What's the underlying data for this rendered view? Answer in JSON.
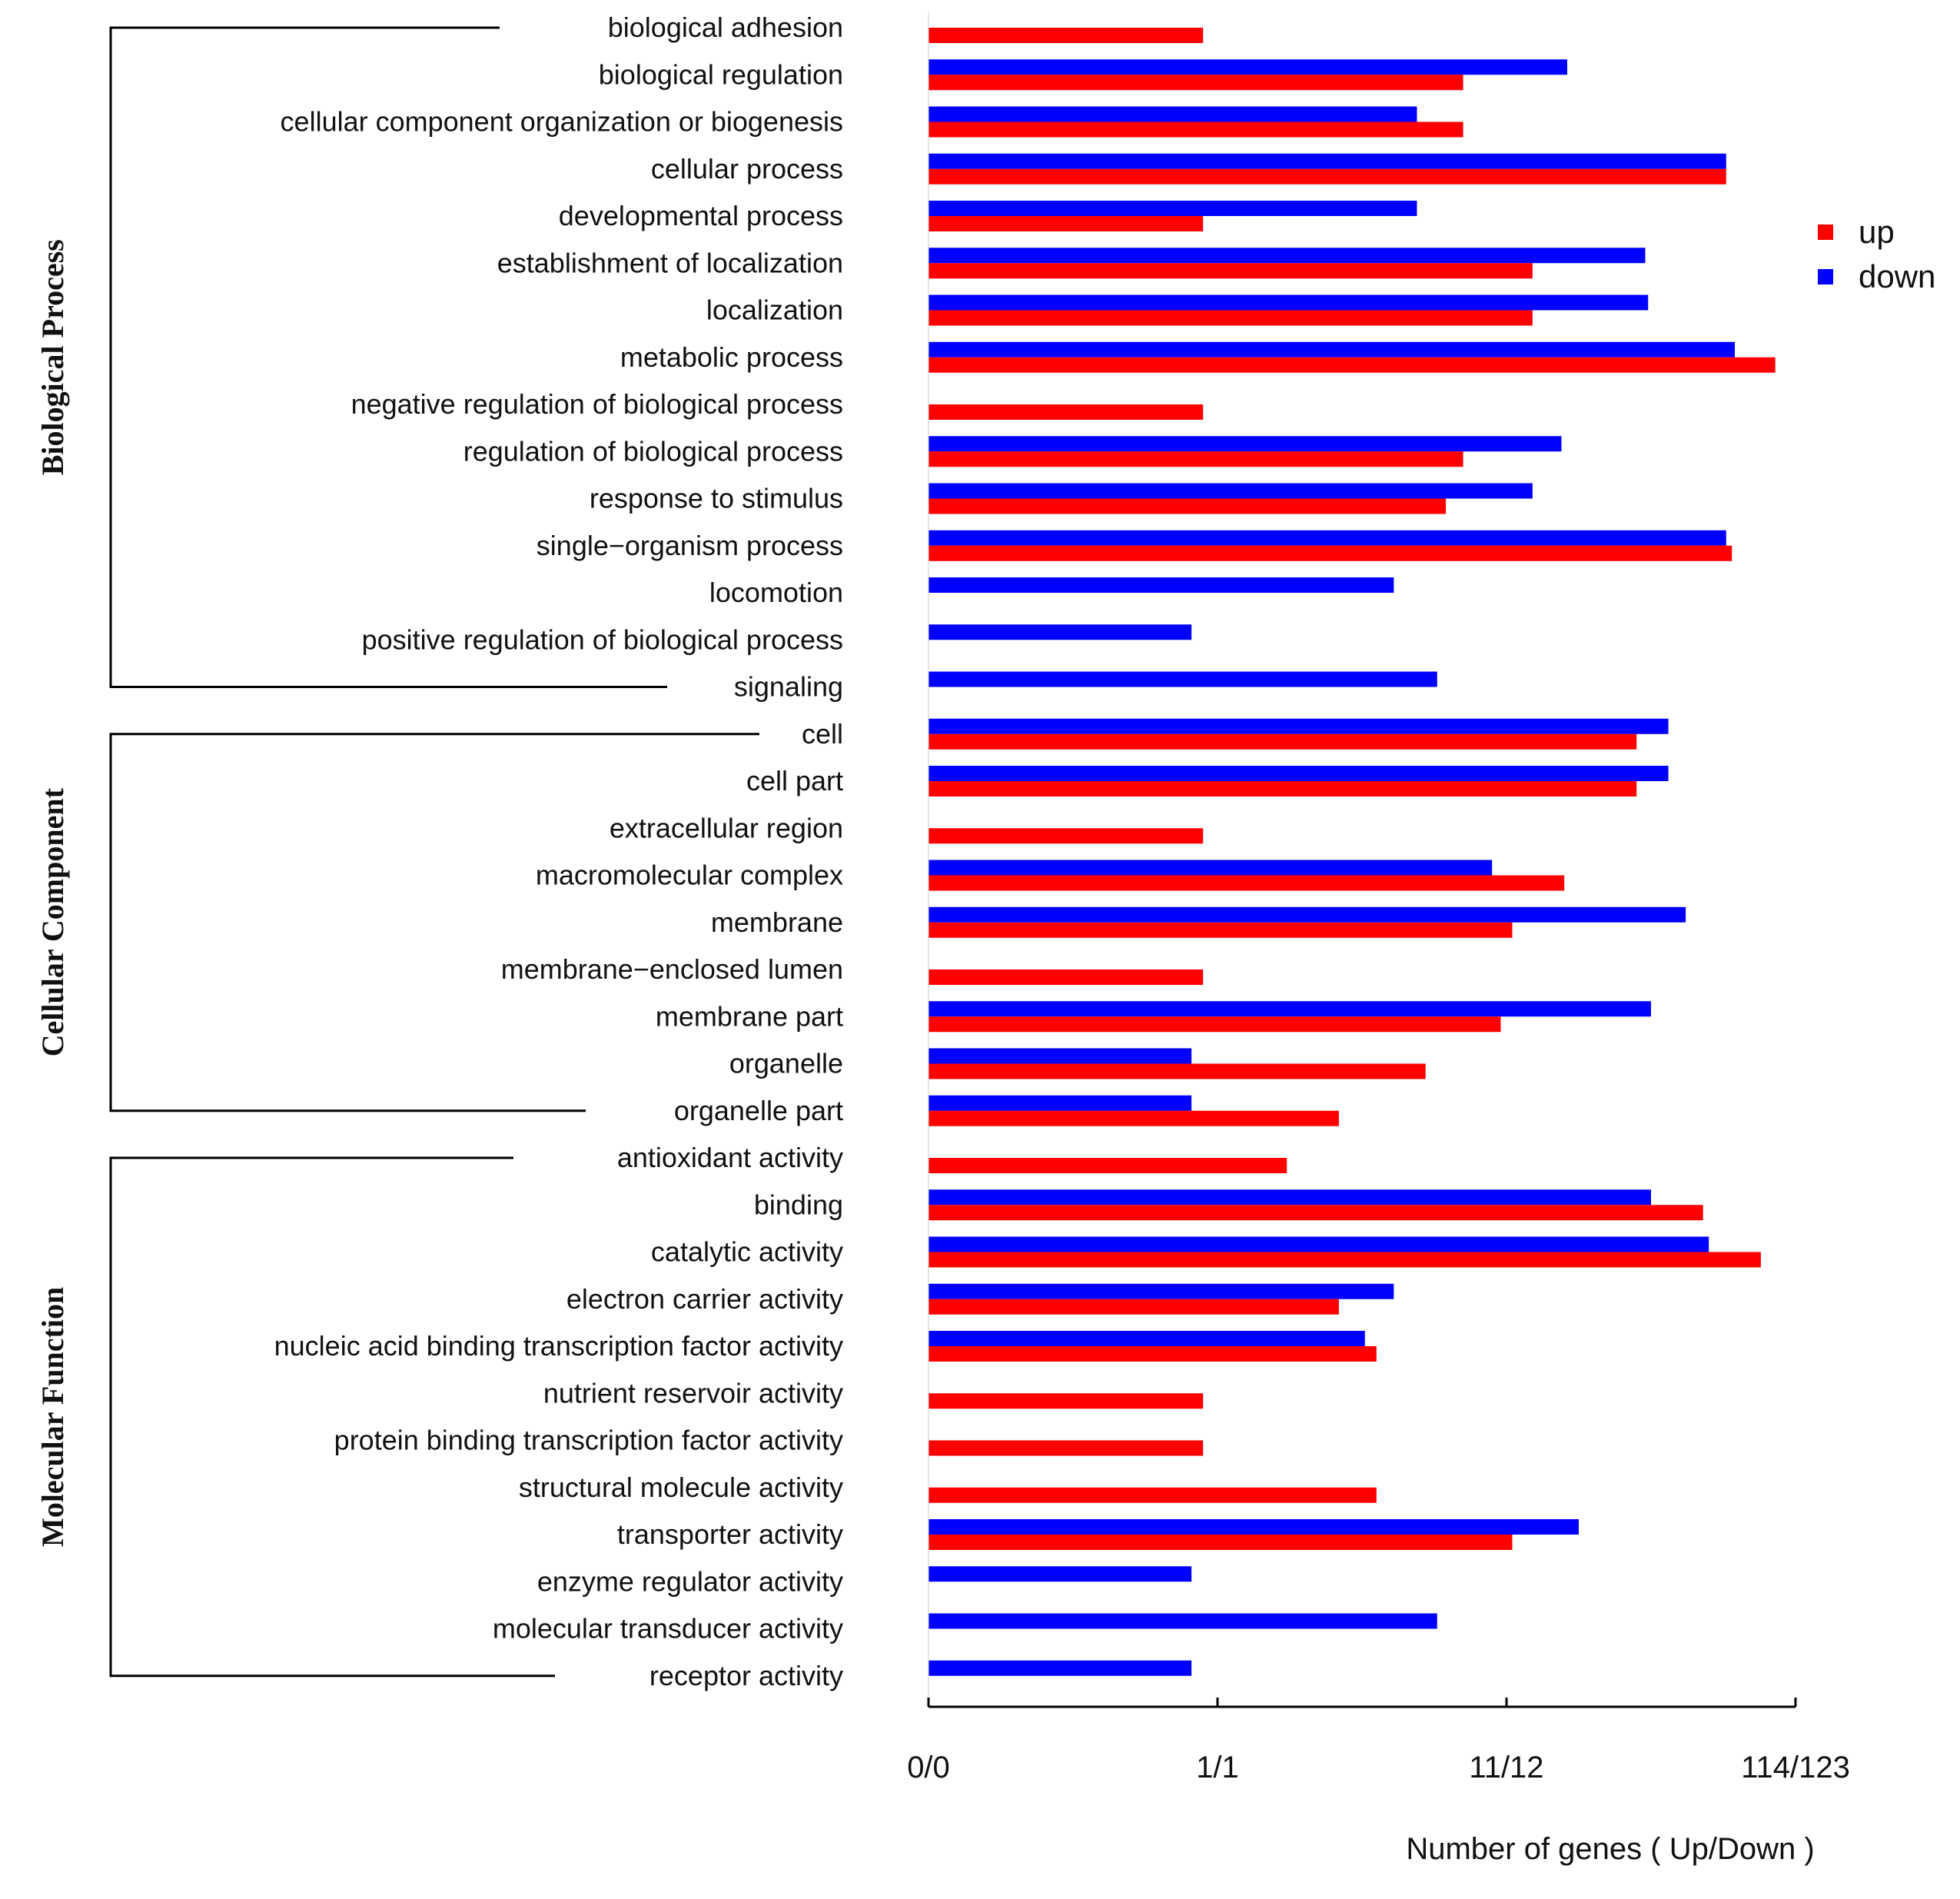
{
  "chart_data": {
    "type": "bar",
    "orientation": "horizontal",
    "scale": "log",
    "xlabel": "Number of genes ( Up/Down )",
    "ticks": [
      {
        "label": "0/0",
        "value": 0
      },
      {
        "label": "1/1",
        "value": 1
      },
      {
        "label": "11/12",
        "value": 2
      },
      {
        "label": "114/123",
        "value": 3
      }
    ],
    "legend": {
      "position": "top-right",
      "entries": [
        {
          "name": "up",
          "color": "#ff0000"
        },
        {
          "name": "down",
          "color": "#0000ff"
        }
      ]
    },
    "colors": {
      "up": "#ff0000",
      "down": "#0000ff"
    },
    "groups": [
      {
        "name": "Biological Process",
        "start": 0,
        "end": 14
      },
      {
        "name": "Cellular Component",
        "start": 15,
        "end": 23
      },
      {
        "name": "Molecular Function",
        "start": 24,
        "end": 35
      }
    ],
    "categories": [
      "biological adhesion",
      "biological regulation",
      "cellular component organization or biogenesis",
      "cellular process",
      "developmental process",
      "establishment of localization",
      "localization",
      "metabolic process",
      "negative regulation of biological process",
      "regulation of biological process",
      "response to stimulus",
      "single−organism process",
      "locomotion",
      "positive regulation of biological process",
      "signaling",
      "cell",
      "cell part",
      "extracellular region",
      "macromolecular complex",
      "membrane",
      "membrane−enclosed lumen",
      "membrane part",
      "organelle",
      "organelle part",
      "antioxidant activity",
      "binding",
      "catalytic activity",
      "electron carrier activity",
      "nucleic acid binding transcription factor activity",
      "nutrient reservoir activity",
      "protein binding transcription factor activity",
      "structural molecule activity",
      "transporter activity",
      "enzyme regulator activity",
      "molecular transducer activity",
      "receptor activity"
    ],
    "series": [
      {
        "name": "up",
        "values": [
          0.95,
          1.85,
          1.85,
          2.76,
          0.95,
          2.09,
          2.09,
          2.93,
          0.95,
          1.85,
          1.79,
          2.78,
          0,
          0,
          0,
          2.45,
          2.45,
          0.95,
          2.2,
          2.02,
          0.95,
          1.98,
          1.72,
          1.42,
          1.24,
          2.68,
          2.88,
          1.42,
          1.55,
          0.95,
          0.95,
          1.55,
          2.02,
          0,
          0,
          0
        ]
      },
      {
        "name": "down",
        "values": [
          0,
          2.21,
          1.69,
          2.76,
          1.69,
          2.48,
          2.49,
          2.79,
          0,
          2.19,
          2.09,
          2.76,
          1.61,
          0.91,
          1.76,
          2.56,
          2.56,
          0,
          1.95,
          2.62,
          0,
          2.5,
          0.91,
          0.91,
          0,
          2.5,
          2.7,
          1.61,
          1.51,
          0,
          0,
          0,
          2.25,
          0.91,
          1.76,
          0.91
        ]
      }
    ]
  }
}
